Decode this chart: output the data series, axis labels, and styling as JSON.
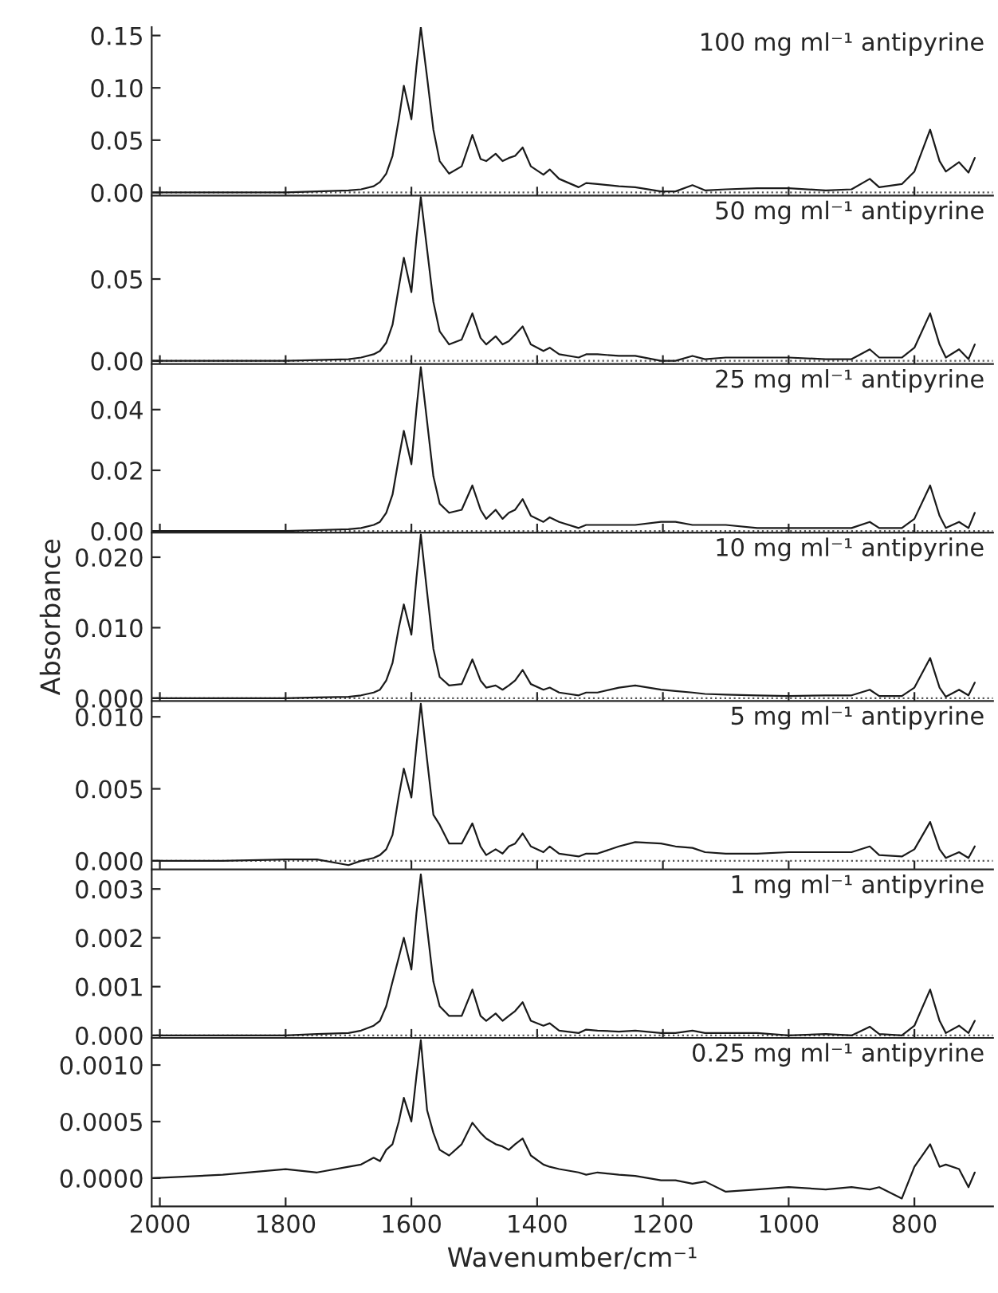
{
  "chart_data": [
    {
      "type": "line",
      "title": "100 mg ml⁻¹ antipyrine",
      "x": [
        2010,
        1900,
        1800,
        1750,
        1700,
        1680,
        1660,
        1650,
        1640,
        1630,
        1620,
        1612,
        1600,
        1592,
        1585,
        1575,
        1565,
        1555,
        1540,
        1520,
        1503,
        1490,
        1481,
        1466,
        1455,
        1445,
        1435,
        1423,
        1410,
        1390,
        1380,
        1365,
        1334,
        1322,
        1304,
        1270,
        1244,
        1203,
        1180,
        1153,
        1133,
        1100,
        1050,
        1000,
        941,
        900,
        871,
        856,
        820,
        800,
        775,
        760,
        750,
        729,
        714,
        704
      ],
      "xlim": [
        2013,
        675
      ],
      "xticks": [
        2000,
        1800,
        1600,
        1400,
        1200,
        1000,
        800
      ],
      "ylim": [
        -0.003,
        0.158
      ],
      "yticks": [
        {
          "value": 0,
          "label": "0.00"
        },
        {
          "value": 0.05,
          "label": "0.05"
        },
        {
          "value": 0.1,
          "label": "0.10"
        },
        {
          "value": 0.15,
          "label": "0.15"
        }
      ],
      "tick_labels": "y",
      "ref_lines": [
        {
          "axis": "y",
          "value": 0,
          "line_style": "dotted",
          "color": "#555555"
        }
      ],
      "series": [
        {
          "color": "#1a1a1a",
          "values": [
            0,
            0,
            0,
            0.001,
            0.002,
            0.003,
            0.006,
            0.01,
            0.018,
            0.035,
            0.07,
            0.102,
            0.07,
            0.12,
            0.158,
            0.11,
            0.06,
            0.03,
            0.018,
            0.025,
            0.055,
            0.032,
            0.03,
            0.037,
            0.03,
            0.033,
            0.035,
            0.043,
            0.025,
            0.017,
            0.022,
            0.013,
            0.005,
            0.009,
            0.008,
            0.006,
            0.005,
            0.001,
            0.001,
            0.007,
            0.002,
            0.003,
            0.004,
            0.004,
            0.002,
            0.003,
            0.013,
            0.005,
            0.008,
            0.02,
            0.06,
            0.03,
            0.02,
            0.029,
            0.019,
            0.033
          ]
        }
      ]
    },
    {
      "type": "line",
      "title": "50 mg ml⁻¹ antipyrine",
      "x": [
        2010,
        1900,
        1800,
        1750,
        1700,
        1680,
        1660,
        1650,
        1640,
        1630,
        1620,
        1612,
        1600,
        1592,
        1585,
        1575,
        1565,
        1555,
        1540,
        1520,
        1503,
        1490,
        1481,
        1466,
        1455,
        1445,
        1435,
        1423,
        1410,
        1390,
        1380,
        1365,
        1334,
        1322,
        1304,
        1270,
        1244,
        1203,
        1180,
        1153,
        1133,
        1100,
        1050,
        1000,
        941,
        900,
        871,
        856,
        820,
        800,
        775,
        760,
        750,
        729,
        714,
        704
      ],
      "xlim": [
        2013,
        675
      ],
      "xticks": [
        2000,
        1800,
        1600,
        1400,
        1200,
        1000,
        800
      ],
      "ylim": [
        -0.002,
        0.101
      ],
      "yticks": [
        {
          "value": 0,
          "label": "0.00"
        },
        {
          "value": 0.05,
          "label": "0.05"
        }
      ],
      "tick_labels": "y",
      "ref_lines": [
        {
          "axis": "y",
          "value": 0,
          "line_style": "dotted",
          "color": "#555555"
        }
      ],
      "series": [
        {
          "color": "#1a1a1a",
          "values": [
            0,
            0,
            0,
            0.0005,
            0.001,
            0.002,
            0.004,
            0.006,
            0.011,
            0.022,
            0.045,
            0.063,
            0.042,
            0.075,
            0.1,
            0.068,
            0.036,
            0.018,
            0.01,
            0.013,
            0.029,
            0.014,
            0.01,
            0.015,
            0.01,
            0.012,
            0.016,
            0.021,
            0.01,
            0.006,
            0.008,
            0.004,
            0.002,
            0.004,
            0.004,
            0.003,
            0.003,
            0.0,
            0.0,
            0.003,
            0.001,
            0.002,
            0.002,
            0.002,
            0.001,
            0.001,
            0.007,
            0.002,
            0.002,
            0.008,
            0.029,
            0.01,
            0.002,
            0.007,
            0.001,
            0.01
          ]
        }
      ]
    },
    {
      "type": "line",
      "title": "25 mg ml⁻¹ antipyrine",
      "x": [
        2010,
        1900,
        1800,
        1750,
        1700,
        1680,
        1660,
        1650,
        1640,
        1630,
        1620,
        1612,
        1600,
        1592,
        1585,
        1575,
        1565,
        1555,
        1540,
        1520,
        1503,
        1490,
        1481,
        1466,
        1455,
        1445,
        1435,
        1423,
        1410,
        1390,
        1380,
        1365,
        1334,
        1322,
        1304,
        1270,
        1244,
        1203,
        1180,
        1153,
        1133,
        1100,
        1050,
        1000,
        941,
        900,
        871,
        856,
        820,
        800,
        775,
        760,
        750,
        729,
        714,
        704
      ],
      "xlim": [
        2013,
        675
      ],
      "xticks": [
        2000,
        1800,
        1600,
        1400,
        1200,
        1000,
        800
      ],
      "ylim": [
        -0.0005,
        0.055
      ],
      "yticks": [
        {
          "value": 0,
          "label": "0.00"
        },
        {
          "value": 0.02,
          "label": "0.02"
        },
        {
          "value": 0.04,
          "label": "0.04"
        }
      ],
      "tick_labels": "y",
      "ref_lines": [
        {
          "axis": "y",
          "value": 0,
          "line_style": "dotted",
          "color": "#555555"
        }
      ],
      "series": [
        {
          "color": "#1a1a1a",
          "values": [
            0,
            0,
            0,
            0.0003,
            0.0006,
            0.001,
            0.002,
            0.003,
            0.006,
            0.012,
            0.024,
            0.033,
            0.022,
            0.04,
            0.054,
            0.036,
            0.018,
            0.009,
            0.006,
            0.007,
            0.015,
            0.007,
            0.004,
            0.007,
            0.004,
            0.006,
            0.007,
            0.0105,
            0.005,
            0.003,
            0.0045,
            0.003,
            0.001,
            0.002,
            0.002,
            0.002,
            0.002,
            0.003,
            0.003,
            0.002,
            0.002,
            0.002,
            0.001,
            0.001,
            0.001,
            0.001,
            0.003,
            0.001,
            0.001,
            0.004,
            0.015,
            0.005,
            0.001,
            0.003,
            0.001,
            0.006
          ]
        }
      ]
    },
    {
      "type": "line",
      "title": "10 mg ml⁻¹ antipyrine",
      "ylabel": "Absorbance",
      "x": [
        2010,
        1900,
        1800,
        1750,
        1700,
        1680,
        1660,
        1650,
        1640,
        1630,
        1620,
        1612,
        1600,
        1592,
        1585,
        1575,
        1565,
        1555,
        1540,
        1520,
        1503,
        1490,
        1481,
        1466,
        1455,
        1445,
        1435,
        1423,
        1410,
        1390,
        1380,
        1365,
        1334,
        1322,
        1304,
        1270,
        1244,
        1203,
        1180,
        1153,
        1133,
        1100,
        1050,
        1000,
        941,
        900,
        871,
        856,
        820,
        800,
        775,
        760,
        750,
        729,
        714,
        704
      ],
      "xlim": [
        2013,
        675
      ],
      "xticks": [
        2000,
        1800,
        1600,
        1400,
        1200,
        1000,
        800
      ],
      "ylim": [
        -0.0004,
        0.0235
      ],
      "yticks": [
        {
          "value": 0,
          "label": "0.000"
        },
        {
          "value": 0.01,
          "label": "0.010"
        },
        {
          "value": 0.02,
          "label": "0.020"
        }
      ],
      "tick_labels": "y",
      "ref_lines": [
        {
          "axis": "y",
          "value": 0,
          "line_style": "dotted",
          "color": "#555555"
        }
      ],
      "series": [
        {
          "color": "#1a1a1a",
          "values": [
            0,
            0,
            0,
            0.0001,
            0.0002,
            0.0004,
            0.0008,
            0.0012,
            0.0025,
            0.005,
            0.01,
            0.0133,
            0.009,
            0.017,
            0.0232,
            0.015,
            0.007,
            0.003,
            0.0018,
            0.002,
            0.0055,
            0.0025,
            0.0015,
            0.0018,
            0.0012,
            0.0018,
            0.0025,
            0.004,
            0.002,
            0.0012,
            0.0015,
            0.0008,
            0.0004,
            0.0008,
            0.0008,
            0.0015,
            0.0018,
            0.0012,
            0.001,
            0.0008,
            0.0006,
            0.0005,
            0.0004,
            0.0003,
            0.0004,
            0.0004,
            0.0012,
            0.0003,
            0.0003,
            0.0015,
            0.0057,
            0.0015,
            0.0002,
            0.0012,
            0.0004,
            0.0022
          ]
        }
      ]
    },
    {
      "type": "line",
      "title": "5 mg ml⁻¹ antipyrine",
      "x": [
        2010,
        1900,
        1800,
        1750,
        1700,
        1680,
        1660,
        1650,
        1640,
        1630,
        1620,
        1612,
        1600,
        1592,
        1585,
        1575,
        1565,
        1555,
        1540,
        1520,
        1503,
        1490,
        1481,
        1466,
        1455,
        1445,
        1435,
        1423,
        1410,
        1390,
        1380,
        1365,
        1334,
        1322,
        1304,
        1270,
        1244,
        1203,
        1180,
        1153,
        1133,
        1100,
        1050,
        1000,
        941,
        900,
        871,
        856,
        820,
        800,
        775,
        760,
        750,
        729,
        714,
        704
      ],
      "xlim": [
        2013,
        675
      ],
      "xticks": [
        2000,
        1800,
        1600,
        1400,
        1200,
        1000,
        800
      ],
      "ylim": [
        -0.0006,
        0.0111
      ],
      "yticks": [
        {
          "value": 0,
          "label": "0.000"
        },
        {
          "value": 0.005,
          "label": "0.005"
        },
        {
          "value": 0.01,
          "label": "0.010"
        }
      ],
      "tick_labels": "y",
      "ref_lines": [
        {
          "axis": "y",
          "value": 0,
          "line_style": "dotted",
          "color": "#555555"
        }
      ],
      "series": [
        {
          "color": "#1a1a1a",
          "values": [
            0,
            0,
            0.0001,
            0.0001,
            -0.0003,
            0.0,
            0.0002,
            0.0004,
            0.0008,
            0.0018,
            0.0045,
            0.0064,
            0.0044,
            0.008,
            0.0109,
            0.007,
            0.0032,
            0.0025,
            0.0012,
            0.0012,
            0.0026,
            0.001,
            0.0004,
            0.0008,
            0.0005,
            0.001,
            0.0012,
            0.0019,
            0.001,
            0.0006,
            0.001,
            0.0005,
            0.0003,
            0.0005,
            0.0005,
            0.001,
            0.0013,
            0.0012,
            0.001,
            0.0009,
            0.0006,
            0.0005,
            0.0005,
            0.0006,
            0.0006,
            0.0006,
            0.001,
            0.0004,
            0.0003,
            0.0008,
            0.0027,
            0.0008,
            0.0002,
            0.0006,
            0.0002,
            0.001
          ]
        }
      ]
    },
    {
      "type": "line",
      "title": "1 mg ml⁻¹ antipyrine",
      "x": [
        2010,
        1900,
        1800,
        1750,
        1700,
        1680,
        1660,
        1650,
        1640,
        1630,
        1620,
        1612,
        1600,
        1592,
        1585,
        1575,
        1565,
        1555,
        1540,
        1520,
        1503,
        1490,
        1481,
        1466,
        1455,
        1445,
        1435,
        1423,
        1410,
        1390,
        1380,
        1365,
        1334,
        1322,
        1304,
        1270,
        1244,
        1203,
        1180,
        1153,
        1133,
        1100,
        1050,
        1000,
        941,
        900,
        871,
        856,
        820,
        800,
        775,
        760,
        750,
        729,
        714,
        704
      ],
      "xlim": [
        2013,
        675
      ],
      "xticks": [
        2000,
        1800,
        1600,
        1400,
        1200,
        1000,
        800
      ],
      "ylim": [
        -5e-05,
        0.0034
      ],
      "yticks": [
        {
          "value": 0,
          "label": "0.000"
        },
        {
          "value": 0.001,
          "label": "0.001"
        },
        {
          "value": 0.002,
          "label": "0.002"
        },
        {
          "value": 0.003,
          "label": "0.003"
        }
      ],
      "tick_labels": "y",
      "ref_lines": [
        {
          "axis": "y",
          "value": 0,
          "line_style": "dotted",
          "color": "#555555"
        }
      ],
      "series": [
        {
          "color": "#1a1a1a",
          "values": [
            0,
            0,
            0,
            3e-05,
            5e-05,
            0.0001,
            0.0002,
            0.0003,
            0.0006,
            0.0011,
            0.0016,
            0.002,
            0.00135,
            0.0025,
            0.0033,
            0.0022,
            0.0011,
            0.0006,
            0.0004,
            0.0004,
            0.00094,
            0.0004,
            0.0003,
            0.00045,
            0.0003,
            0.0004,
            0.0005,
            0.00068,
            0.0003,
            0.0002,
            0.00025,
            0.0001,
            5e-05,
            0.00012,
            0.0001,
            8e-05,
            0.0001,
            5e-05,
            5e-05,
            0.0001,
            5e-05,
            5e-05,
            5e-05,
            0.0,
            3e-05,
            0.0,
            0.00018,
            3e-05,
            0.0,
            0.0002,
            0.00094,
            0.0003,
            5e-05,
            0.0002,
            5e-05,
            0.0003
          ]
        }
      ]
    },
    {
      "type": "line",
      "title": "0.25 mg ml⁻¹ antipyrine",
      "xlabel": "Wavenumber/cm⁻¹",
      "x": [
        2010,
        1900,
        1800,
        1750,
        1700,
        1680,
        1660,
        1650,
        1640,
        1630,
        1620,
        1612,
        1600,
        1592,
        1585,
        1575,
        1565,
        1555,
        1540,
        1520,
        1503,
        1490,
        1481,
        1466,
        1455,
        1445,
        1435,
        1423,
        1410,
        1390,
        1380,
        1365,
        1334,
        1322,
        1304,
        1270,
        1244,
        1203,
        1180,
        1153,
        1133,
        1100,
        1050,
        1000,
        941,
        900,
        871,
        856,
        820,
        800,
        775,
        760,
        750,
        729,
        714,
        704
      ],
      "xlim": [
        2013,
        675
      ],
      "xticks": [
        2000,
        1800,
        1600,
        1400,
        1200,
        1000,
        800
      ],
      "ylim": [
        -0.00025,
        0.00124
      ],
      "yticks": [
        {
          "value": 0,
          "label": "0.0000"
        },
        {
          "value": 0.0005,
          "label": "0.0005"
        },
        {
          "value": 0.001,
          "label": "0.0010"
        }
      ],
      "series": [
        {
          "color": "#1a1a1a",
          "values": [
            0.0,
            3e-05,
            8e-05,
            5e-05,
            0.0001,
            0.00012,
            0.00018,
            0.00015,
            0.00025,
            0.0003,
            0.0005,
            0.00071,
            0.0005,
            0.0009,
            0.00122,
            0.0006,
            0.0004,
            0.00025,
            0.0002,
            0.0003,
            0.00049,
            0.0004,
            0.00035,
            0.0003,
            0.00028,
            0.00025,
            0.0003,
            0.00035,
            0.0002,
            0.00012,
            0.0001,
            8e-05,
            5e-05,
            3e-05,
            5e-05,
            3e-05,
            2e-05,
            -2e-05,
            -2e-05,
            -5e-05,
            -3e-05,
            -0.00012,
            -0.0001,
            -8e-05,
            -0.0001,
            -8e-05,
            -0.0001,
            -8e-05,
            -0.00018,
            0.0001,
            0.0003,
            0.0001,
            0.00012,
            8e-05,
            -8e-05,
            5e-05
          ]
        }
      ]
    }
  ]
}
